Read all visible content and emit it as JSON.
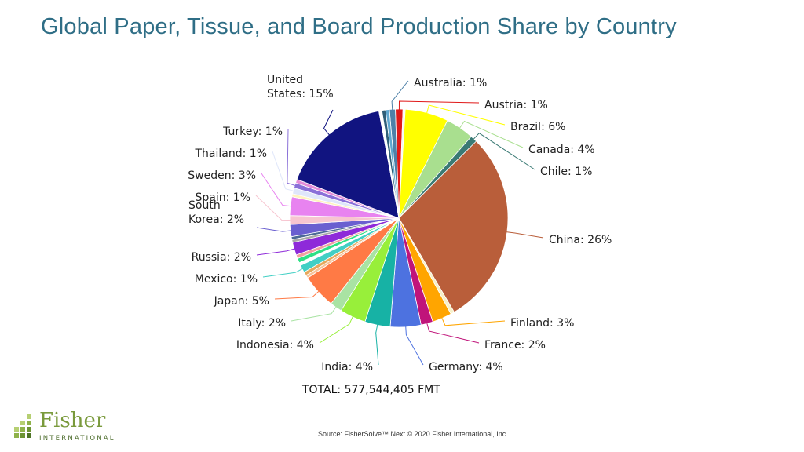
{
  "page": {
    "title_color": "#2f6e86"
  },
  "chart_data": {
    "type": "pie",
    "title": "Global Paper, Tissue, and Board Production Share by Country",
    "total_label": "TOTAL: 577,544,405 FMT",
    "start_angle_deg": -5,
    "slices": [
      {
        "label": "Australia: 1%",
        "value": 0.8,
        "color": "#4f81a8"
      },
      {
        "label": "Austria: 1%",
        "value": 1.0,
        "color": "#e01818"
      },
      {
        "label": "",
        "value": 0.3,
        "color": "#f4f4f4"
      },
      {
        "label": "Brazil: 6%",
        "value": 5.8,
        "color": "#ffff00"
      },
      {
        "label": "Canada: 4%",
        "value": 3.8,
        "color": "#a9df8f"
      },
      {
        "label": "Chile: 1%",
        "value": 0.9,
        "color": "#3a7a74"
      },
      {
        "label": "China: 26%",
        "value": 26.2,
        "color": "#b95e3a"
      },
      {
        "label": "",
        "value": 0.5,
        "color": "#f7f1c8"
      },
      {
        "label": "Finland: 3%",
        "value": 2.6,
        "color": "#ffa500"
      },
      {
        "label": "France: 2%",
        "value": 1.6,
        "color": "#c0147a"
      },
      {
        "label": "Germany: 4%",
        "value": 4.1,
        "color": "#4d72e0"
      },
      {
        "label": "India: 4%",
        "value": 3.4,
        "color": "#17b2a5"
      },
      {
        "label": "Indonesia: 4%",
        "value": 3.5,
        "color": "#98ef3a"
      },
      {
        "label": "Italy: 2%",
        "value": 1.6,
        "color": "#a9e3a3"
      },
      {
        "label": "Japan: 5%",
        "value": 4.6,
        "color": "#ff7a45"
      },
      {
        "label": "",
        "value": 0.4,
        "color": "#f7c39a"
      },
      {
        "label": "",
        "value": 0.5,
        "color": "#e6a85c"
      },
      {
        "label": "Mexico: 1%",
        "value": 1.0,
        "color": "#41cfc4"
      },
      {
        "label": "",
        "value": 0.4,
        "color": "#ffffff"
      },
      {
        "label": "",
        "value": 0.6,
        "color": "#2ee085"
      },
      {
        "label": "",
        "value": 0.5,
        "color": "#f1a0a0"
      },
      {
        "label": "Russia: 2%",
        "value": 1.7,
        "color": "#8e2ad9"
      },
      {
        "label": "",
        "value": 0.4,
        "color": "#a8a8a8"
      },
      {
        "label": "",
        "value": 0.4,
        "color": "#4c6a96"
      },
      {
        "label": "South Korea: 2%",
        "value": 1.6,
        "color": "#6a5fd0"
      },
      {
        "label": "Spain: 1%",
        "value": 1.2,
        "color": "#f7c5d0"
      },
      {
        "label": "Sweden: 3%",
        "value": 2.5,
        "color": "#e883f0"
      },
      {
        "label": "",
        "value": 0.4,
        "color": "#fff3c0"
      },
      {
        "label": "Thailand: 1%",
        "value": 0.8,
        "color": "#dfe6fa"
      },
      {
        "label": "Turkey: 1%",
        "value": 0.7,
        "color": "#8a70d8"
      },
      {
        "label": "",
        "value": 0.5,
        "color": "#e48cd8"
      },
      {
        "label": "United States: 15%",
        "value": 14.7,
        "color": "#111480"
      },
      {
        "label": "",
        "value": 0.4,
        "color": "#ffffff"
      },
      {
        "label": "",
        "value": 0.5,
        "color": "#2f5f78"
      },
      {
        "label": "",
        "value": 0.5,
        "color": "#5fa8d0"
      }
    ]
  },
  "footer": {
    "source": "Source: FisherSolve™ Next © 2020 Fisher International, Inc.",
    "logo_name": "Fisher",
    "logo_sub": "INTERNATIONAL"
  }
}
